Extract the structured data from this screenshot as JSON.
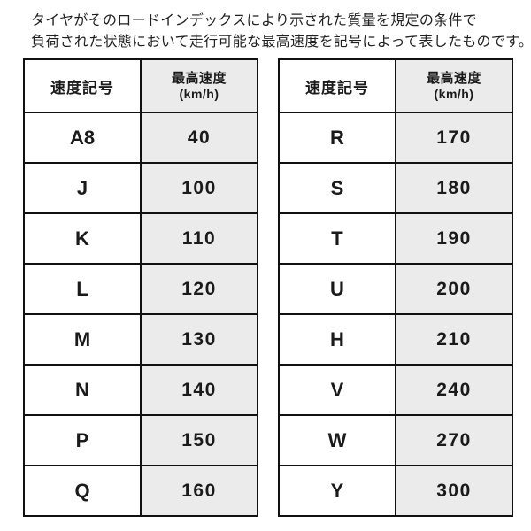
{
  "description": {
    "line1": "タイヤがそのロードインデックスにより示された質量を規定の条件で",
    "line2": "負荷された状態において走行可能な最高速度を記号によって表したものです。"
  },
  "tables": [
    {
      "header_symbol": "速度記号",
      "header_speed": "最高速度",
      "header_unit": "(km/h)",
      "rows": [
        {
          "symbol": "A8",
          "speed": "40"
        },
        {
          "symbol": "J",
          "speed": "100"
        },
        {
          "symbol": "K",
          "speed": "110"
        },
        {
          "symbol": "L",
          "speed": "120"
        },
        {
          "symbol": "M",
          "speed": "130"
        },
        {
          "symbol": "N",
          "speed": "140"
        },
        {
          "symbol": "P",
          "speed": "150"
        },
        {
          "symbol": "Q",
          "speed": "160"
        }
      ]
    },
    {
      "header_symbol": "速度記号",
      "header_speed": "最高速度",
      "header_unit": "(km/h)",
      "rows": [
        {
          "symbol": "R",
          "speed": "170"
        },
        {
          "symbol": "S",
          "speed": "180"
        },
        {
          "symbol": "T",
          "speed": "190"
        },
        {
          "symbol": "U",
          "speed": "200"
        },
        {
          "symbol": "H",
          "speed": "210"
        },
        {
          "symbol": "V",
          "speed": "240"
        },
        {
          "symbol": "W",
          "speed": "270"
        },
        {
          "symbol": "Y",
          "speed": "300"
        }
      ]
    }
  ],
  "colors": {
    "speed_cell_bg": "#ebebeb",
    "border": "#111111",
    "text": "#1a1a1a"
  }
}
